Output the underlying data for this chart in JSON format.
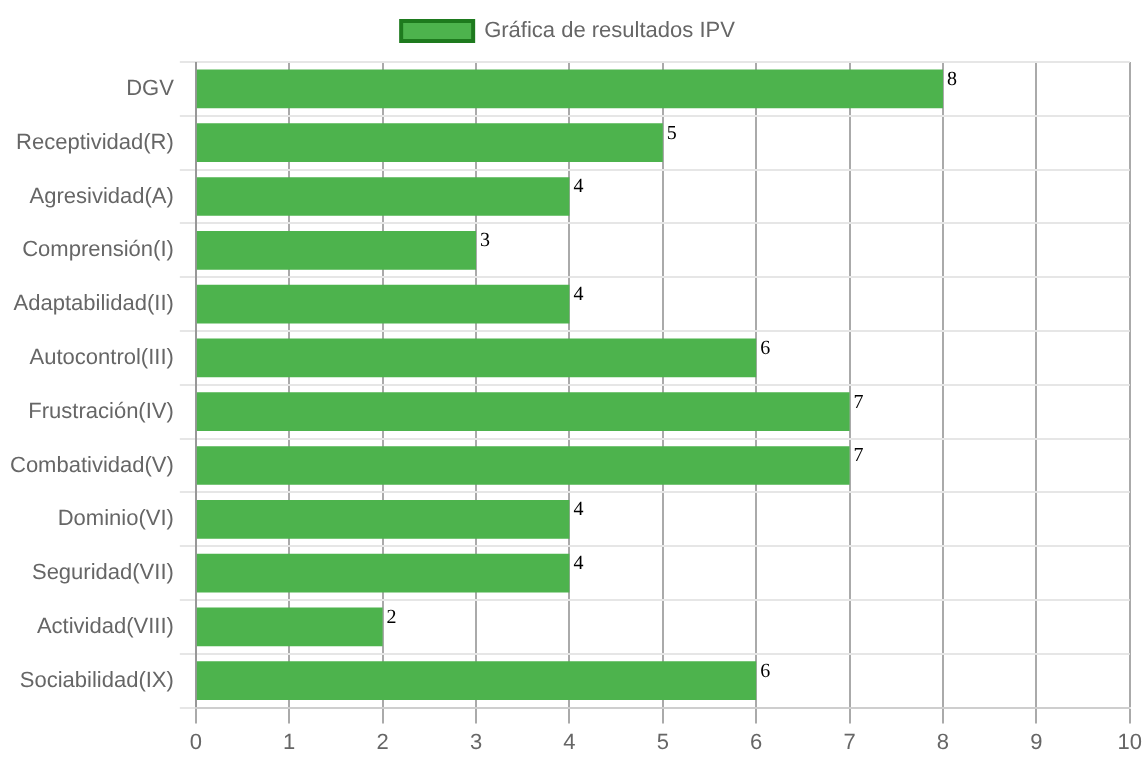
{
  "chart_data": {
    "type": "bar",
    "orientation": "horizontal",
    "categories": [
      "DGV",
      "Receptividad(R)",
      "Agresividad(A)",
      "Comprensión(I)",
      "Adaptabilidad(II)",
      "Autocontrol(III)",
      "Frustración(IV)",
      "Combatividad(V)",
      "Dominio(VI)",
      "Seguridad(VII)",
      "Actividad(VIII)",
      "Sociabilidad(IX)"
    ],
    "series": [
      {
        "name": "Gráfica de resultados IPV",
        "color": "#4db34d",
        "values": [
          8,
          5,
          4,
          3,
          4,
          6,
          7,
          7,
          4,
          4,
          2,
          6
        ]
      }
    ],
    "xlim": [
      0,
      10
    ],
    "xticks": [
      0,
      1,
      2,
      3,
      4,
      5,
      6,
      7,
      8,
      9,
      10
    ],
    "grid": true,
    "legend": "top",
    "data_labels": true
  }
}
